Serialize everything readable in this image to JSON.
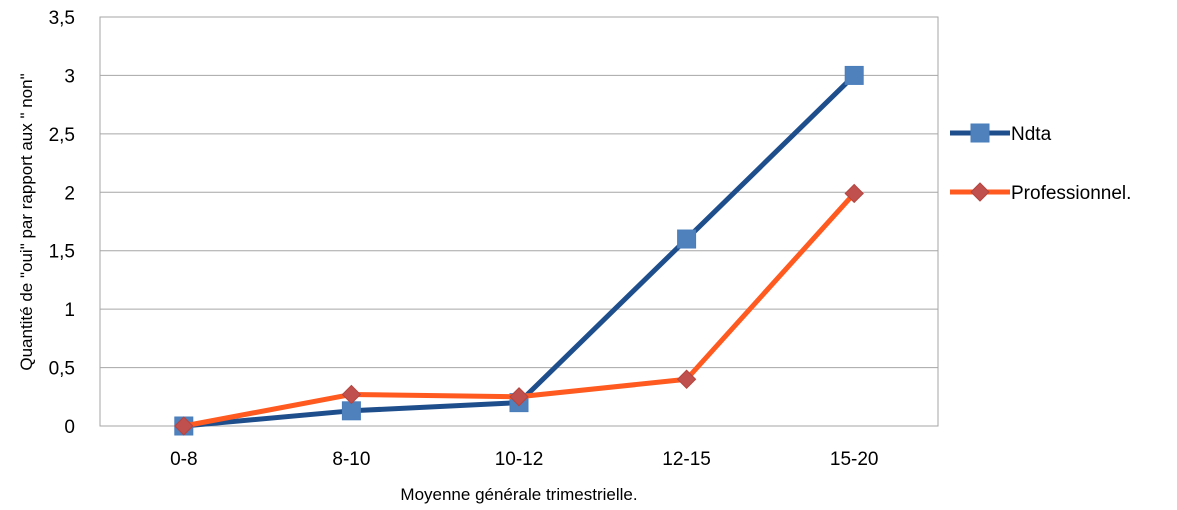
{
  "chart_data": {
    "type": "line",
    "title": "",
    "xlabel": "Moyenne générale trimestrielle.",
    "ylabel": "Quantité de \"oui\" par rapport aux \" non\"",
    "categories": [
      "0-8",
      "8-10",
      "10-12",
      "12-15",
      "15-20"
    ],
    "ylim": [
      0,
      3.5
    ],
    "yticks": [
      "0",
      "0,5",
      "1",
      "1,5",
      "2",
      "2,5",
      "3",
      "3,5"
    ],
    "grid": true,
    "legend_position": "right",
    "series": [
      {
        "name": "Ndta",
        "values": [
          0,
          0.13,
          0.2,
          1.6,
          3.0
        ],
        "color": "#1F4E8C",
        "marker": "square",
        "marker_color": "#4F81BD"
      },
      {
        "name": "Professionnel.",
        "values": [
          0,
          0.27,
          0.25,
          0.4,
          1.99
        ],
        "color": "#FF5A1F",
        "marker": "diamond",
        "marker_color": "#C0504D"
      }
    ]
  }
}
